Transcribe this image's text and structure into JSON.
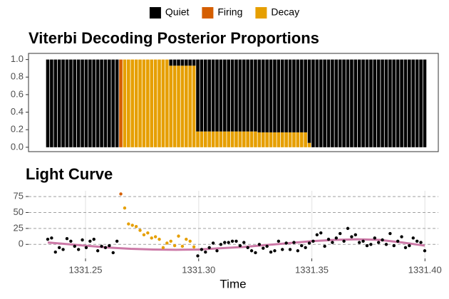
{
  "chart_data": [
    {
      "type": "bar",
      "stacked": true,
      "title": "Viterbi Decoding Posterior Proportions",
      "legend": "top",
      "x": [
        1331.2333,
        1331.235,
        1331.2367,
        1331.2384,
        1331.2401,
        1331.2418,
        1331.2435,
        1331.2452,
        1331.2469,
        1331.2486,
        1331.2503,
        1331.252,
        1331.2537,
        1331.2554,
        1331.2571,
        1331.2588,
        1331.2605,
        1331.2622,
        1331.2639,
        1331.2656,
        1331.2673,
        1331.269,
        1331.2707,
        1331.2724,
        1331.2741,
        1331.2758,
        1331.2775,
        1331.2792,
        1331.2809,
        1331.2826,
        1331.2843,
        1331.286,
        1331.2877,
        1331.2894,
        1331.2911,
        1331.2928,
        1331.2945,
        1331.2962,
        1331.2979,
        1331.2996,
        1331.3013,
        1331.303,
        1331.3047,
        1331.3064,
        1331.3081,
        1331.3098,
        1331.3115,
        1331.3132,
        1331.3149,
        1331.3166,
        1331.3183,
        1331.32,
        1331.3217,
        1331.3234,
        1331.3251,
        1331.3268,
        1331.3285,
        1331.3302,
        1331.3319,
        1331.3336,
        1331.3353,
        1331.337,
        1331.3387,
        1331.3404,
        1331.3421,
        1331.3438,
        1331.3455,
        1331.3472,
        1331.3489,
        1331.3506,
        1331.3523,
        1331.354,
        1331.3557,
        1331.3574,
        1331.3591,
        1331.3608,
        1331.3625,
        1331.3642,
        1331.3659,
        1331.3676,
        1331.3693,
        1331.371,
        1331.3727,
        1331.3744,
        1331.3761,
        1331.3778,
        1331.3795,
        1331.3812,
        1331.3829,
        1331.3846,
        1331.3863,
        1331.388,
        1331.3897,
        1331.3914,
        1331.3931,
        1331.3948,
        1331.3965,
        1331.3982,
        1331.3999
      ],
      "series": [
        {
          "name": "Quiet",
          "color": "#000000",
          "values": [
            1,
            1,
            1,
            1,
            1,
            1,
            1,
            1,
            1,
            1,
            1,
            1,
            1,
            1,
            1,
            1,
            1,
            1,
            1,
            0,
            0,
            0,
            0,
            0,
            0,
            0,
            0,
            0,
            0,
            0,
            0,
            0,
            0.07,
            0.07,
            0.07,
            0.07,
            0.07,
            0.07,
            0.07,
            0.82,
            0.82,
            0.82,
            0.82,
            0.82,
            0.82,
            0.82,
            0.82,
            0.82,
            0.82,
            0.82,
            0.82,
            0.82,
            0.82,
            0.82,
            0.82,
            0.83,
            0.83,
            0.83,
            0.83,
            0.83,
            0.83,
            0.83,
            0.83,
            0.83,
            0.83,
            0.83,
            0.83,
            0.83,
            0.95,
            1,
            1,
            1,
            1,
            1,
            1,
            1,
            1,
            1,
            1,
            1,
            1,
            1,
            1,
            1,
            1,
            1,
            1,
            1,
            1,
            1,
            1,
            1,
            1,
            1,
            1,
            1,
            1,
            1,
            1
          ]
        },
        {
          "name": "Firing",
          "color": "#d55e00",
          "values": [
            0,
            0,
            0,
            0,
            0,
            0,
            0,
            0,
            0,
            0,
            0,
            0,
            0,
            0,
            0,
            0,
            0,
            0,
            0,
            1,
            0,
            0,
            0,
            0,
            0,
            0,
            0,
            0,
            0,
            0,
            0,
            0,
            0,
            0,
            0,
            0,
            0,
            0,
            0,
            0,
            0,
            0,
            0,
            0,
            0,
            0,
            0,
            0,
            0,
            0,
            0,
            0,
            0,
            0,
            0,
            0,
            0,
            0,
            0,
            0,
            0,
            0,
            0,
            0,
            0,
            0,
            0,
            0,
            0,
            0,
            0,
            0,
            0,
            0,
            0,
            0,
            0,
            0,
            0,
            0,
            0,
            0,
            0,
            0,
            0,
            0,
            0,
            0,
            0,
            0,
            0,
            0,
            0,
            0,
            0,
            0,
            0,
            0,
            0
          ]
        },
        {
          "name": "Decay",
          "color": "#e69f00",
          "values": [
            0,
            0,
            0,
            0,
            0,
            0,
            0,
            0,
            0,
            0,
            0,
            0,
            0,
            0,
            0,
            0,
            0,
            0,
            0,
            0,
            1,
            1,
            1,
            1,
            1,
            1,
            1,
            1,
            1,
            1,
            1,
            1,
            0.93,
            0.93,
            0.93,
            0.93,
            0.93,
            0.93,
            0.93,
            0.18,
            0.18,
            0.18,
            0.18,
            0.18,
            0.18,
            0.18,
            0.18,
            0.18,
            0.18,
            0.18,
            0.18,
            0.18,
            0.18,
            0.18,
            0.18,
            0.17,
            0.17,
            0.17,
            0.17,
            0.17,
            0.17,
            0.17,
            0.17,
            0.17,
            0.17,
            0.17,
            0.17,
            0.17,
            0.05,
            0,
            0,
            0,
            0,
            0,
            0,
            0,
            0,
            0,
            0,
            0,
            0,
            0,
            0,
            0,
            0,
            0,
            0,
            0,
            0,
            0,
            0,
            0,
            0,
            0,
            0,
            0,
            0,
            0,
            0
          ]
        }
      ],
      "xlim": [
        1331.2248,
        1331.4059
      ],
      "ylim": [
        -0.05,
        1.07
      ],
      "yticks": [
        {
          "value": 0,
          "label": "0.0"
        },
        {
          "value": 0.2,
          "label": "0.2"
        },
        {
          "value": 0.4,
          "label": "0.4"
        },
        {
          "value": 0.6,
          "label": "0.6"
        },
        {
          "value": 0.8,
          "label": "0.8"
        },
        {
          "value": 1,
          "label": "1.0"
        }
      ],
      "grid": false
    },
    {
      "type": "scatter",
      "title": "Light Curve",
      "x_label": "Time",
      "series": [
        {
          "name": "Quiet",
          "color": "#000000",
          "x": [
            1331.2333,
            1331.235,
            1331.2367,
            1331.2384,
            1331.2401,
            1331.2418,
            1331.2435,
            1331.2452,
            1331.2469,
            1331.2486,
            1331.2503,
            1331.252,
            1331.2537,
            1331.2554,
            1331.2571,
            1331.2588,
            1331.2605,
            1331.2622,
            1331.2639,
            1331.2996,
            1331.3013,
            1331.303,
            1331.3047,
            1331.3064,
            1331.3081,
            1331.3098,
            1331.3115,
            1331.3132,
            1331.3149,
            1331.3166,
            1331.3183,
            1331.32,
            1331.3217,
            1331.3234,
            1331.3251,
            1331.3268,
            1331.3285,
            1331.3302,
            1331.3319,
            1331.3336,
            1331.3353,
            1331.337,
            1331.3387,
            1331.3404,
            1331.3421,
            1331.3438,
            1331.3455,
            1331.3472,
            1331.3489,
            1331.3506,
            1331.3523,
            1331.354,
            1331.3557,
            1331.3574,
            1331.3591,
            1331.3608,
            1331.3625,
            1331.3642,
            1331.3659,
            1331.3676,
            1331.3693,
            1331.371,
            1331.3727,
            1331.3744,
            1331.3761,
            1331.3778,
            1331.3795,
            1331.3812,
            1331.3829,
            1331.3846,
            1331.3863,
            1331.388,
            1331.3897,
            1331.3914,
            1331.3931,
            1331.3948,
            1331.3965,
            1331.3982,
            1331.3999
          ],
          "values": [
            8,
            10,
            -12,
            -5,
            -8,
            9,
            5,
            -3,
            -8,
            7,
            -5,
            5,
            8,
            -10,
            -3,
            -5,
            -2,
            -13,
            5,
            -18,
            -8,
            -12,
            -5,
            2,
            -10,
            0,
            3,
            3,
            5,
            5,
            -2,
            3,
            -5,
            -10,
            -13,
            0,
            -6,
            -3,
            -12,
            -10,
            5,
            -8,
            2,
            -8,
            3,
            -10,
            -2,
            -5,
            2,
            5,
            15,
            18,
            -3,
            8,
            3,
            10,
            17,
            5,
            25,
            12,
            15,
            3,
            5,
            -2,
            0,
            10,
            3,
            7,
            0,
            17,
            -2,
            5,
            12,
            -5,
            -2,
            10,
            5,
            3,
            -10
          ]
        },
        {
          "name": "Firing",
          "color": "#d55e00",
          "x": [
            1331.2656
          ],
          "values": [
            79
          ]
        },
        {
          "name": "Decay",
          "color": "#e69f00",
          "x": [
            1331.2673,
            1331.269,
            1331.2707,
            1331.2724,
            1331.2741,
            1331.2758,
            1331.2775,
            1331.2792,
            1331.2809,
            1331.2826,
            1331.2843,
            1331.286,
            1331.2877,
            1331.2894,
            1331.2911,
            1331.2928,
            1331.2945,
            1331.2962,
            1331.2979
          ],
          "values": [
            57,
            32,
            30,
            28,
            22,
            15,
            18,
            10,
            12,
            8,
            -5,
            2,
            5,
            -2,
            13,
            -3,
            8,
            5,
            -4
          ]
        }
      ],
      "trend": {
        "color": "#cc79a7",
        "x": [
          1331.2333,
          1331.24,
          1331.25,
          1331.26,
          1331.27,
          1331.28,
          1331.29,
          1331.3,
          1331.31,
          1331.32,
          1331.33,
          1331.34,
          1331.35,
          1331.36,
          1331.37,
          1331.38,
          1331.39,
          1331.3999
        ],
        "values": [
          3,
          1,
          -2,
          -5,
          -7,
          -8,
          -8.5,
          -8,
          -6,
          -4,
          -1,
          2,
          5,
          7,
          8,
          7,
          3,
          -2
        ]
      },
      "xlim": [
        1331.2248,
        1331.4059
      ],
      "ylim": [
        -22,
        84
      ],
      "xticks": [
        1331.25,
        {
          "value": 1331.3,
          "label": "1331.30"
        },
        1331.35,
        {
          "value": 1331.4,
          "label": "1331.40"
        }
      ],
      "yticks": [
        0,
        25,
        50,
        75
      ],
      "grid": true
    }
  ]
}
